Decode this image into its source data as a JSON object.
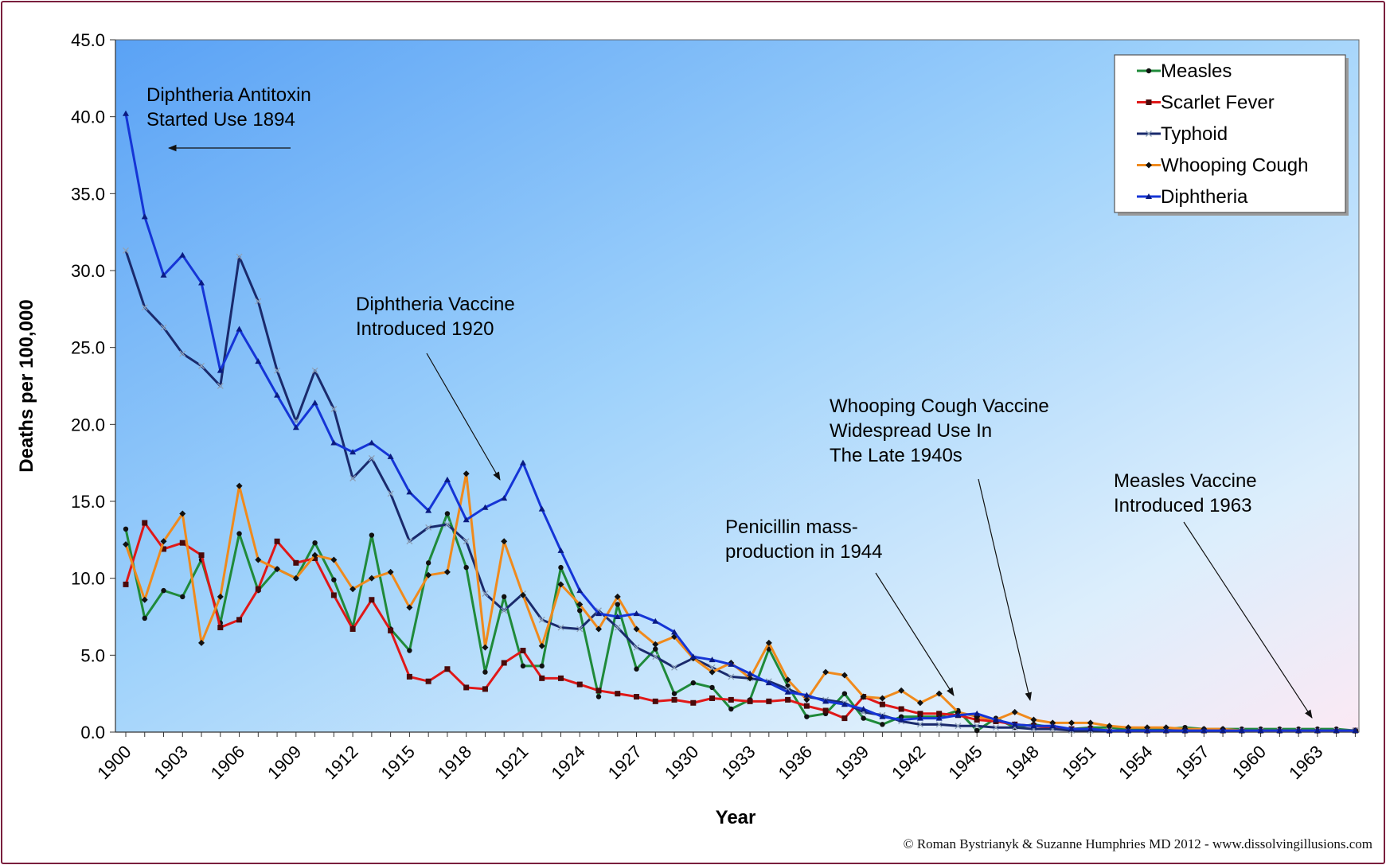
{
  "chart_data": {
    "type": "line",
    "xlabel": "Year",
    "ylabel": "Deaths per 100,000",
    "xlim": [
      1900,
      1965
    ],
    "ylim": [
      0,
      45
    ],
    "y_ticks": [
      "0.0",
      "5.0",
      "10.0",
      "15.0",
      "20.0",
      "25.0",
      "30.0",
      "35.0",
      "40.0",
      "45.0"
    ],
    "x_tick_labels": [
      "1900",
      "1903",
      "1906",
      "1909",
      "1912",
      "1915",
      "1918",
      "1921",
      "1924",
      "1927",
      "1930",
      "1933",
      "1936",
      "1939",
      "1942",
      "1945",
      "1948",
      "1951",
      "1954",
      "1957",
      "1960",
      "1963"
    ],
    "legend_position": "top-right",
    "grid": false,
    "x": [
      1900,
      1901,
      1902,
      1903,
      1904,
      1905,
      1906,
      1907,
      1908,
      1909,
      1910,
      1911,
      1912,
      1913,
      1914,
      1915,
      1916,
      1917,
      1918,
      1919,
      1920,
      1921,
      1922,
      1923,
      1924,
      1925,
      1926,
      1927,
      1928,
      1929,
      1930,
      1931,
      1932,
      1933,
      1934,
      1935,
      1936,
      1937,
      1938,
      1939,
      1940,
      1941,
      1942,
      1943,
      1944,
      1945,
      1946,
      1947,
      1948,
      1949,
      1950,
      1951,
      1952,
      1953,
      1954,
      1955,
      1956,
      1957,
      1958,
      1959,
      1960,
      1961,
      1962,
      1963,
      1964,
      1965
    ],
    "series": [
      {
        "name": "Measles",
        "color": "#1f8a3a",
        "marker": "circle",
        "values": [
          13.2,
          7.4,
          9.2,
          8.8,
          11.2,
          7.1,
          12.9,
          9.2,
          10.6,
          10.0,
          12.3,
          9.9,
          6.8,
          12.8,
          6.7,
          5.3,
          11.0,
          14.2,
          10.7,
          3.9,
          8.8,
          4.3,
          4.3,
          10.7,
          7.9,
          2.3,
          8.3,
          4.1,
          5.4,
          2.5,
          3.2,
          2.9,
          1.5,
          2.1,
          5.4,
          3.0,
          1.0,
          1.2,
          2.5,
          0.9,
          0.5,
          1.0,
          1.0,
          1.0,
          1.4,
          0.1,
          0.9,
          0.3,
          0.5,
          0.3,
          0.2,
          0.3,
          0.3,
          0.2,
          0.2,
          0.2,
          0.3,
          0.2,
          0.2,
          0.2,
          0.2,
          0.2,
          0.2,
          0.2,
          0.2,
          0.1
        ]
      },
      {
        "name": "Scarlet Fever",
        "color": "#e01818",
        "marker": "square",
        "values": [
          9.6,
          13.6,
          11.9,
          12.3,
          11.5,
          6.8,
          7.3,
          9.3,
          12.4,
          11.0,
          11.3,
          8.9,
          6.7,
          8.6,
          6.6,
          3.6,
          3.3,
          4.1,
          2.9,
          2.8,
          4.5,
          5.3,
          3.5,
          3.5,
          3.1,
          2.7,
          2.5,
          2.3,
          2.0,
          2.1,
          1.9,
          2.2,
          2.1,
          2.0,
          2.0,
          2.1,
          1.7,
          1.4,
          0.9,
          2.3,
          1.8,
          1.5,
          1.2,
          1.2,
          1.1,
          0.8,
          0.7,
          0.5,
          0.4,
          0.3,
          0.2,
          0.2,
          0.1,
          0.1,
          0.1,
          0.1,
          0.1,
          0.1,
          0.1,
          0.1,
          0.1,
          0.1,
          0.1,
          0.1,
          0.1,
          0.1
        ]
      },
      {
        "name": "Typhoid",
        "color": "#1a2a6c",
        "marker": "x",
        "values": [
          31.3,
          27.6,
          26.3,
          24.6,
          23.8,
          22.5,
          30.9,
          28.0,
          23.5,
          20.2,
          23.5,
          21.0,
          16.5,
          17.8,
          15.5,
          12.4,
          13.3,
          13.5,
          12.4,
          9.0,
          7.9,
          9.0,
          7.3,
          6.8,
          6.7,
          7.9,
          6.8,
          5.5,
          4.9,
          4.2,
          4.8,
          4.2,
          3.6,
          3.5,
          3.3,
          2.8,
          2.3,
          2.1,
          1.9,
          1.3,
          1.1,
          0.7,
          0.5,
          0.5,
          0.4,
          0.4,
          0.3,
          0.3,
          0.2,
          0.2,
          0.1,
          0.1,
          0.1,
          0.1,
          0.1,
          0.1,
          0.1,
          0.1,
          0.1,
          0.1,
          0.1,
          0.1,
          0.1,
          0.1,
          0.1,
          0.1
        ]
      },
      {
        "name": "Whooping Cough",
        "color": "#f08a1c",
        "marker": "diamond",
        "values": [
          12.2,
          8.6,
          12.4,
          14.2,
          5.8,
          8.8,
          16.0,
          11.2,
          10.6,
          10.0,
          11.5,
          11.2,
          9.3,
          10.0,
          10.4,
          8.1,
          10.2,
          10.4,
          16.8,
          5.5,
          12.4,
          8.9,
          5.6,
          9.6,
          8.3,
          6.7,
          8.8,
          6.7,
          5.7,
          6.2,
          4.8,
          3.9,
          4.5,
          3.5,
          5.8,
          3.4,
          2.1,
          3.9,
          3.7,
          2.3,
          2.2,
          2.7,
          1.9,
          2.5,
          1.3,
          1.0,
          0.8,
          1.3,
          0.8,
          0.6,
          0.6,
          0.6,
          0.4,
          0.3,
          0.3,
          0.3,
          0.2,
          0.2,
          0.2,
          0.1,
          0.1,
          0.1,
          0.1,
          0.1,
          0.1,
          0.1
        ]
      },
      {
        "name": "Diphtheria",
        "color": "#1535d6",
        "marker": "triangle",
        "values": [
          40.2,
          33.5,
          29.7,
          31.0,
          29.2,
          23.5,
          26.2,
          24.1,
          21.9,
          19.8,
          21.4,
          18.8,
          18.2,
          18.8,
          17.9,
          15.6,
          14.4,
          16.4,
          13.8,
          14.6,
          15.2,
          17.5,
          14.5,
          11.8,
          9.2,
          7.7,
          7.5,
          7.7,
          7.2,
          6.5,
          4.9,
          4.7,
          4.4,
          3.8,
          3.2,
          2.6,
          2.4,
          2.0,
          1.8,
          1.5,
          1.0,
          0.8,
          0.9,
          0.9,
          1.1,
          1.2,
          0.8,
          0.5,
          0.4,
          0.4,
          0.2,
          0.2,
          0.1,
          0.1,
          0.1,
          0.1,
          0.1,
          0.1,
          0.1,
          0.1,
          0.1,
          0.1,
          0.1,
          0.1,
          0.1,
          0.1
        ]
      }
    ],
    "annotations": [
      {
        "lines": [
          "Diphtheria Antitoxin",
          "Started Use 1894"
        ]
      },
      {
        "lines": [
          "Diphtheria Vaccine",
          "Introduced 1920"
        ]
      },
      {
        "lines": [
          "Whooping Cough Vaccine",
          "Widespread Use In",
          "The Late 1940s"
        ]
      },
      {
        "lines": [
          "Penicillin mass-",
          "production in 1944"
        ]
      },
      {
        "lines": [
          "Measles Vaccine",
          "Introduced 1963"
        ]
      }
    ]
  },
  "copyright": "© Roman Bystrianyk & Suzanne Humphries MD 2012 - www.dissolvingillusions.com"
}
